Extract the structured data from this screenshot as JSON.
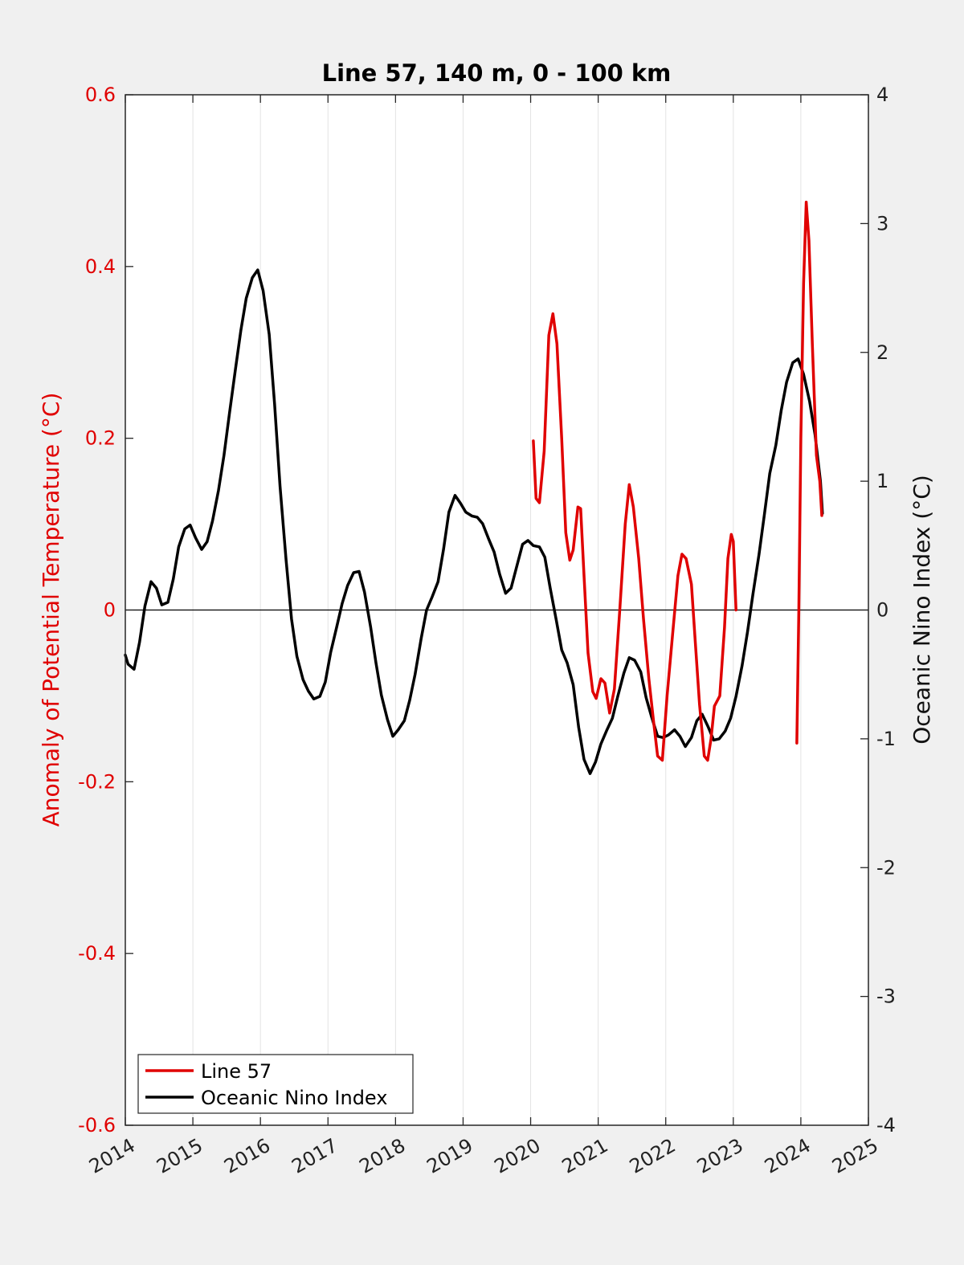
{
  "chart_data": {
    "type": "line",
    "title": "Line 57, 140 m, 0 - 100 km",
    "ylabel_left": "Anomaly of Potential Temperature (°C)",
    "ylabel_right": "Oceanic Nino Index (°C)",
    "xlim": [
      2014,
      2025
    ],
    "ylim_left": [
      -0.6,
      0.6
    ],
    "ylim_right": [
      -4,
      4
    ],
    "x_ticks": [
      "2014",
      "2015",
      "2016",
      "2017",
      "2018",
      "2019",
      "2020",
      "2021",
      "2022",
      "2023",
      "2024",
      "2025"
    ],
    "y_left_ticks": [
      "-0.6",
      "-0.4",
      "-0.2",
      "0",
      "0.2",
      "0.4",
      "0.6"
    ],
    "y_right_ticks": [
      "-4",
      "-3",
      "-2",
      "-1",
      "0",
      "1",
      "2",
      "3",
      "4"
    ],
    "grid_vertical": true,
    "zero_line": true,
    "legend_position": "bottom-left",
    "colors": {
      "line57": "#e00000",
      "oni": "#000000",
      "left_axis": "#e00000"
    },
    "series": [
      {
        "name": "Line 57",
        "axis": "left",
        "color": "#e00000",
        "segments": [
          [
            [
              2020.04,
              0.197
            ],
            [
              2020.08,
              0.13
            ],
            [
              2020.13,
              0.125
            ],
            [
              2020.2,
              0.185
            ],
            [
              2020.27,
              0.32
            ],
            [
              2020.33,
              0.345
            ],
            [
              2020.39,
              0.31
            ],
            [
              2020.46,
              0.2
            ],
            [
              2020.52,
              0.09
            ],
            [
              2020.58,
              0.058
            ],
            [
              2020.63,
              0.07
            ],
            [
              2020.7,
              0.12
            ],
            [
              2020.74,
              0.118
            ],
            [
              2020.79,
              0.04
            ],
            [
              2020.85,
              -0.05
            ],
            [
              2020.92,
              -0.095
            ],
            [
              2020.97,
              -0.103
            ],
            [
              2021.04,
              -0.08
            ],
            [
              2021.1,
              -0.085
            ],
            [
              2021.17,
              -0.12
            ],
            [
              2021.24,
              -0.092
            ],
            [
              2021.32,
              0.0
            ],
            [
              2021.4,
              0.1
            ],
            [
              2021.46,
              0.146
            ],
            [
              2021.52,
              0.12
            ],
            [
              2021.6,
              0.06
            ],
            [
              2021.67,
              -0.01
            ],
            [
              2021.75,
              -0.08
            ],
            [
              2021.82,
              -0.13
            ],
            [
              2021.88,
              -0.17
            ],
            [
              2021.95,
              -0.175
            ],
            [
              2022.02,
              -0.1
            ],
            [
              2022.1,
              -0.03
            ],
            [
              2022.18,
              0.04
            ],
            [
              2022.24,
              0.065
            ],
            [
              2022.3,
              0.06
            ],
            [
              2022.38,
              0.03
            ],
            [
              2022.44,
              -0.04
            ],
            [
              2022.5,
              -0.11
            ],
            [
              2022.57,
              -0.17
            ],
            [
              2022.62,
              -0.175
            ],
            [
              2022.67,
              -0.15
            ],
            [
              2022.72,
              -0.112
            ],
            [
              2022.8,
              -0.1
            ],
            [
              2022.87,
              -0.02
            ],
            [
              2022.92,
              0.06
            ],
            [
              2022.97,
              0.088
            ],
            [
              2023.0,
              0.08
            ],
            [
              2023.04,
              0.0
            ]
          ],
          [
            [
              2023.94,
              -0.155
            ],
            [
              2023.97,
              0.0
            ],
            [
              2024.0,
              0.2
            ],
            [
              2024.04,
              0.38
            ],
            [
              2024.08,
              0.475
            ],
            [
              2024.12,
              0.43
            ],
            [
              2024.17,
              0.31
            ],
            [
              2024.23,
              0.18
            ],
            [
              2024.28,
              0.15
            ],
            [
              2024.31,
              0.11
            ]
          ]
        ]
      },
      {
        "name": "Oceanic Nino Index",
        "axis": "right",
        "color": "#000000",
        "segments": [
          [
            [
              2014.0,
              -0.35
            ],
            [
              2014.04,
              -0.42
            ],
            [
              2014.13,
              -0.46
            ],
            [
              2014.21,
              -0.25
            ],
            [
              2014.29,
              0.03
            ],
            [
              2014.38,
              0.22
            ],
            [
              2014.46,
              0.17
            ],
            [
              2014.54,
              0.04
            ],
            [
              2014.63,
              0.06
            ],
            [
              2014.71,
              0.24
            ],
            [
              2014.79,
              0.49
            ],
            [
              2014.88,
              0.63
            ],
            [
              2014.96,
              0.66
            ],
            [
              2015.04,
              0.56
            ],
            [
              2015.13,
              0.47
            ],
            [
              2015.21,
              0.53
            ],
            [
              2015.29,
              0.69
            ],
            [
              2015.38,
              0.93
            ],
            [
              2015.46,
              1.2
            ],
            [
              2015.54,
              1.52
            ],
            [
              2015.63,
              1.87
            ],
            [
              2015.71,
              2.17
            ],
            [
              2015.79,
              2.42
            ],
            [
              2015.88,
              2.58
            ],
            [
              2015.96,
              2.64
            ],
            [
              2016.04,
              2.48
            ],
            [
              2016.13,
              2.14
            ],
            [
              2016.21,
              1.6
            ],
            [
              2016.29,
              0.96
            ],
            [
              2016.38,
              0.39
            ],
            [
              2016.46,
              -0.07
            ],
            [
              2016.54,
              -0.36
            ],
            [
              2016.63,
              -0.54
            ],
            [
              2016.71,
              -0.63
            ],
            [
              2016.79,
              -0.69
            ],
            [
              2016.88,
              -0.67
            ],
            [
              2016.96,
              -0.56
            ],
            [
              2017.04,
              -0.33
            ],
            [
              2017.13,
              -0.13
            ],
            [
              2017.21,
              0.05
            ],
            [
              2017.29,
              0.19
            ],
            [
              2017.38,
              0.29
            ],
            [
              2017.46,
              0.3
            ],
            [
              2017.54,
              0.14
            ],
            [
              2017.63,
              -0.13
            ],
            [
              2017.71,
              -0.41
            ],
            [
              2017.79,
              -0.66
            ],
            [
              2017.88,
              -0.85
            ],
            [
              2017.96,
              -0.98
            ],
            [
              2018.04,
              -0.93
            ],
            [
              2018.13,
              -0.86
            ],
            [
              2018.21,
              -0.7
            ],
            [
              2018.29,
              -0.5
            ],
            [
              2018.38,
              -0.22
            ],
            [
              2018.46,
              0.0
            ],
            [
              2018.54,
              0.1
            ],
            [
              2018.63,
              0.22
            ],
            [
              2018.71,
              0.47
            ],
            [
              2018.79,
              0.76
            ],
            [
              2018.88,
              0.89
            ],
            [
              2018.96,
              0.83
            ],
            [
              2019.04,
              0.76
            ],
            [
              2019.13,
              0.73
            ],
            [
              2019.21,
              0.72
            ],
            [
              2019.29,
              0.67
            ],
            [
              2019.38,
              0.55
            ],
            [
              2019.46,
              0.45
            ],
            [
              2019.54,
              0.28
            ],
            [
              2019.63,
              0.13
            ],
            [
              2019.71,
              0.17
            ],
            [
              2019.79,
              0.33
            ],
            [
              2019.88,
              0.51
            ],
            [
              2019.96,
              0.54
            ],
            [
              2020.04,
              0.5
            ],
            [
              2020.13,
              0.49
            ],
            [
              2020.21,
              0.41
            ],
            [
              2020.29,
              0.17
            ],
            [
              2020.38,
              -0.08
            ],
            [
              2020.46,
              -0.31
            ],
            [
              2020.54,
              -0.41
            ],
            [
              2020.63,
              -0.58
            ],
            [
              2020.71,
              -0.91
            ],
            [
              2020.79,
              -1.16
            ],
            [
              2020.88,
              -1.27
            ],
            [
              2020.96,
              -1.18
            ],
            [
              2021.04,
              -1.04
            ],
            [
              2021.13,
              -0.93
            ],
            [
              2021.21,
              -0.84
            ],
            [
              2021.29,
              -0.67
            ],
            [
              2021.38,
              -0.49
            ],
            [
              2021.46,
              -0.37
            ],
            [
              2021.54,
              -0.39
            ],
            [
              2021.63,
              -0.48
            ],
            [
              2021.71,
              -0.68
            ],
            [
              2021.79,
              -0.83
            ],
            [
              2021.88,
              -0.98
            ],
            [
              2021.96,
              -0.99
            ],
            [
              2022.04,
              -0.97
            ],
            [
              2022.13,
              -0.93
            ],
            [
              2022.21,
              -0.98
            ],
            [
              2022.29,
              -1.06
            ],
            [
              2022.38,
              -0.99
            ],
            [
              2022.46,
              -0.86
            ],
            [
              2022.54,
              -0.81
            ],
            [
              2022.63,
              -0.91
            ],
            [
              2022.71,
              -1.01
            ],
            [
              2022.79,
              -1.0
            ],
            [
              2022.88,
              -0.94
            ],
            [
              2022.96,
              -0.84
            ],
            [
              2023.04,
              -0.67
            ],
            [
              2023.13,
              -0.43
            ],
            [
              2023.21,
              -0.17
            ],
            [
              2023.29,
              0.12
            ],
            [
              2023.38,
              0.43
            ],
            [
              2023.46,
              0.74
            ],
            [
              2023.54,
              1.06
            ],
            [
              2023.63,
              1.28
            ],
            [
              2023.71,
              1.55
            ],
            [
              2023.79,
              1.77
            ],
            [
              2023.88,
              1.92
            ],
            [
              2023.96,
              1.95
            ],
            [
              2024.04,
              1.83
            ],
            [
              2024.13,
              1.62
            ],
            [
              2024.21,
              1.36
            ],
            [
              2024.29,
              1.0
            ],
            [
              2024.32,
              0.75
            ]
          ]
        ]
      }
    ]
  }
}
